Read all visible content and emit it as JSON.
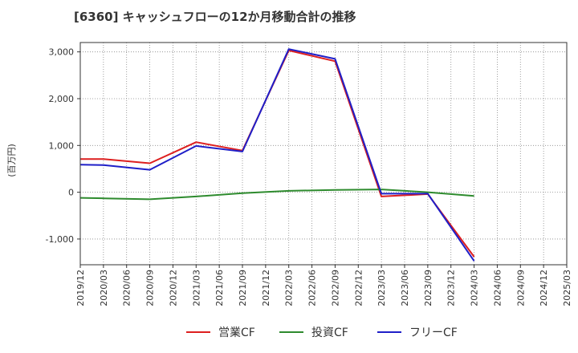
{
  "chart_data": {
    "type": "line",
    "title": "[6360]  キャッシュフローの12か月移動合計の推移",
    "ylabel": "(百万円)",
    "ylim": [
      -1550,
      3200
    ],
    "yticks": [
      -1000,
      0,
      1000,
      2000,
      3000
    ],
    "ytick_labels": [
      "-1,000",
      "0",
      "1,000",
      "2,000",
      "3,000"
    ],
    "categories": [
      "2019/12",
      "2020/03",
      "2020/06",
      "2020/09",
      "2020/12",
      "2021/03",
      "2021/06",
      "2021/09",
      "2021/12",
      "2022/03",
      "2022/06",
      "2022/09",
      "2022/12",
      "2023/03",
      "2023/06",
      "2023/09",
      "2023/12",
      "2024/03",
      "2024/06",
      "2024/09",
      "2024/12",
      "2025/03"
    ],
    "grid": true,
    "legend_position": "bottom",
    "series": [
      {
        "name": "営業CF",
        "color": "#dd1f1f",
        "values": [
          710,
          710,
          null,
          620,
          null,
          1070,
          null,
          890,
          null,
          3030,
          null,
          2800,
          null,
          -90,
          null,
          -40,
          null,
          -1380,
          null,
          null,
          null,
          null
        ]
      },
      {
        "name": "投資CF",
        "color": "#2e8b2e",
        "values": [
          -120,
          -130,
          null,
          -150,
          null,
          -90,
          null,
          -20,
          null,
          30,
          null,
          50,
          null,
          60,
          null,
          0,
          null,
          -80,
          null,
          null,
          null,
          null
        ]
      },
      {
        "name": "フリーCF",
        "color": "#1f1fc8",
        "values": [
          590,
          580,
          null,
          480,
          null,
          990,
          null,
          870,
          null,
          3060,
          null,
          2850,
          null,
          -30,
          null,
          -30,
          null,
          -1470,
          null,
          null,
          null,
          null
        ]
      }
    ]
  }
}
